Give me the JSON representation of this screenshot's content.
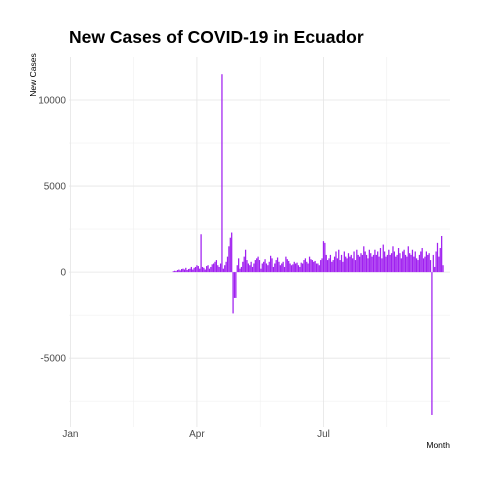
{
  "chart_data": {
    "type": "bar",
    "title": "New Cases of COVID-19 in Ecuador",
    "xlabel": "Month",
    "ylabel": "New Cases",
    "x_ticks": [
      "Jan",
      "Apr",
      "Jul"
    ],
    "y_ticks": [
      10000,
      5000,
      0,
      -5000
    ],
    "y_tick_labels": [
      "10000",
      "5000",
      "0",
      "-5000"
    ],
    "xlim": [
      "2019-12-31",
      "2020-09-30"
    ],
    "ylim": [
      -9000,
      12500
    ],
    "grid": true,
    "bar_color": "#a020f0",
    "series": [
      {
        "x": [
          "2020-03-15",
          "2020-03-16",
          "2020-03-17",
          "2020-03-18",
          "2020-03-19",
          "2020-03-20",
          "2020-03-21",
          "2020-03-22",
          "2020-03-23",
          "2020-03-24",
          "2020-03-25",
          "2020-03-26",
          "2020-03-27",
          "2020-03-28",
          "2020-03-29",
          "2020-03-30",
          "2020-03-31",
          "2020-04-01",
          "2020-04-02",
          "2020-04-03",
          "2020-04-04",
          "2020-04-05",
          "2020-04-06",
          "2020-04-07",
          "2020-04-08",
          "2020-04-09",
          "2020-04-10",
          "2020-04-11",
          "2020-04-12",
          "2020-04-13",
          "2020-04-14",
          "2020-04-15",
          "2020-04-16",
          "2020-04-17",
          "2020-04-18",
          "2020-04-19",
          "2020-04-20",
          "2020-04-21",
          "2020-04-22",
          "2020-04-23",
          "2020-04-24",
          "2020-04-25",
          "2020-04-26",
          "2020-04-27",
          "2020-04-28",
          "2020-04-29",
          "2020-04-30",
          "2020-05-01",
          "2020-05-02",
          "2020-05-03",
          "2020-05-04",
          "2020-05-05",
          "2020-05-06",
          "2020-05-07",
          "2020-05-08",
          "2020-05-09",
          "2020-05-10",
          "2020-05-11",
          "2020-05-12",
          "2020-05-13",
          "2020-05-14",
          "2020-05-15",
          "2020-05-16",
          "2020-05-17",
          "2020-05-18",
          "2020-05-19",
          "2020-05-20",
          "2020-05-21",
          "2020-05-22",
          "2020-05-23",
          "2020-05-24",
          "2020-05-25",
          "2020-05-26",
          "2020-05-27",
          "2020-05-28",
          "2020-05-29",
          "2020-05-30",
          "2020-05-31",
          "2020-06-01",
          "2020-06-02",
          "2020-06-03",
          "2020-06-04",
          "2020-06-05",
          "2020-06-06",
          "2020-06-07",
          "2020-06-08",
          "2020-06-09",
          "2020-06-10",
          "2020-06-11",
          "2020-06-12",
          "2020-06-13",
          "2020-06-14",
          "2020-06-15",
          "2020-06-16",
          "2020-06-17",
          "2020-06-18",
          "2020-06-19",
          "2020-06-20",
          "2020-06-21",
          "2020-06-22",
          "2020-06-23",
          "2020-06-24",
          "2020-06-25",
          "2020-06-26",
          "2020-06-27",
          "2020-06-28",
          "2020-06-29",
          "2020-06-30",
          "2020-07-01",
          "2020-07-02",
          "2020-07-03",
          "2020-07-04",
          "2020-07-05",
          "2020-07-06",
          "2020-07-07",
          "2020-07-08",
          "2020-07-09",
          "2020-07-10",
          "2020-07-11",
          "2020-07-12",
          "2020-07-13",
          "2020-07-14",
          "2020-07-15",
          "2020-07-16",
          "2020-07-17",
          "2020-07-18",
          "2020-07-19",
          "2020-07-20",
          "2020-07-21",
          "2020-07-22",
          "2020-07-23",
          "2020-07-24",
          "2020-07-25",
          "2020-07-26",
          "2020-07-27",
          "2020-07-28",
          "2020-07-29",
          "2020-07-30",
          "2020-07-31",
          "2020-08-01",
          "2020-08-02",
          "2020-08-03",
          "2020-08-04",
          "2020-08-05",
          "2020-08-06",
          "2020-08-07",
          "2020-08-08",
          "2020-08-09",
          "2020-08-10",
          "2020-08-11",
          "2020-08-12",
          "2020-08-13",
          "2020-08-14",
          "2020-08-15",
          "2020-08-16",
          "2020-08-17",
          "2020-08-18",
          "2020-08-19",
          "2020-08-20",
          "2020-08-21",
          "2020-08-22",
          "2020-08-23",
          "2020-08-24",
          "2020-08-25",
          "2020-08-26",
          "2020-08-27",
          "2020-08-28",
          "2020-08-29",
          "2020-08-30",
          "2020-08-31",
          "2020-09-01",
          "2020-09-02",
          "2020-09-03",
          "2020-09-04",
          "2020-09-05",
          "2020-09-06",
          "2020-09-07",
          "2020-09-08",
          "2020-09-09",
          "2020-09-10",
          "2020-09-11",
          "2020-09-12",
          "2020-09-13",
          "2020-09-14",
          "2020-09-15",
          "2020-09-16",
          "2020-09-17",
          "2020-09-18",
          "2020-09-19",
          "2020-09-20",
          "2020-09-21",
          "2020-09-22",
          "2020-09-23",
          "2020-09-24",
          "2020-09-25"
        ],
        "values": [
          50,
          80,
          60,
          120,
          150,
          100,
          180,
          200,
          150,
          250,
          120,
          180,
          200,
          300,
          150,
          250,
          300,
          400,
          350,
          200,
          2200,
          300,
          250,
          150,
          350,
          400,
          200,
          300,
          450,
          500,
          600,
          700,
          400,
          300,
          500,
          11500,
          200,
          400,
          600,
          900,
          1500,
          2000,
          2300,
          -2400,
          -1500,
          -1500,
          400,
          800,
          200,
          300,
          600,
          900,
          1300,
          700,
          500,
          400,
          600,
          300,
          500,
          700,
          800,
          900,
          700,
          200,
          500,
          600,
          750,
          500,
          400,
          600,
          950,
          800,
          300,
          500,
          700,
          850,
          600,
          400,
          500,
          600,
          300,
          900,
          750,
          650,
          500,
          400,
          450,
          600,
          500,
          550,
          400,
          300,
          550,
          500,
          700,
          800,
          600,
          500,
          900,
          750,
          700,
          600,
          650,
          500,
          500,
          400,
          700,
          800,
          1800,
          1700,
          1000,
          700,
          800,
          1000,
          600,
          700,
          900,
          1200,
          800,
          1300,
          700,
          1000,
          600,
          1200,
          900,
          800,
          1100,
          900,
          1000,
          800,
          1200,
          700,
          1300,
          1000,
          900,
          1100,
          1000,
          1500,
          1200,
          1000,
          800,
          1300,
          1100,
          900,
          1000,
          1300,
          1000,
          1200,
          900,
          1400,
          800,
          1600,
          1200,
          900,
          1000,
          1300,
          1000,
          1100,
          1500,
          1200,
          900,
          1000,
          1400,
          1100,
          800,
          1200,
          1300,
          1000,
          900,
          1500,
          1100,
          1000,
          1300,
          900,
          1200,
          800,
          700,
          1000,
          1200,
          1400,
          800,
          900,
          1200,
          1000,
          1100,
          700,
          -8300,
          1000,
          300,
          1200,
          1700,
          900,
          1400,
          2100,
          400
        ]
      }
    ]
  }
}
